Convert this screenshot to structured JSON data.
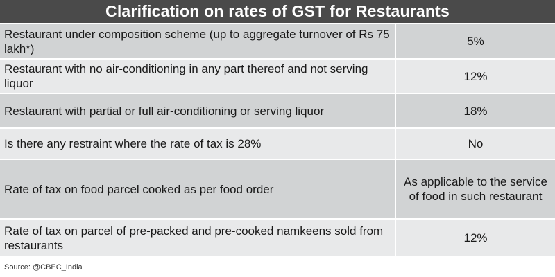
{
  "title": "Clarification on rates of GST for Restaurants",
  "rows": [
    {
      "label": "Restaurant under composition scheme (up to aggregate turnover of Rs 75 lakh*)",
      "rate": "5%"
    },
    {
      "label": "Restaurant with no air-conditioning in any part thereof and not serving liquor",
      "rate": "12%"
    },
    {
      "label": "Restaurant with partial or full air-conditioning or serving liquor",
      "rate": "18%"
    },
    {
      "label": "Is there any restraint where the rate of tax is 28%",
      "rate": "No"
    },
    {
      "label": "Rate of tax on food parcel cooked as per food order",
      "rate": "As applicable to the service of food in such restaurant"
    },
    {
      "label": "Rate of tax on parcel of pre-packed and pre-cooked namkeens sold from restaurants",
      "rate": "12%"
    }
  ],
  "source": "Source: @CBEC_India",
  "colors": {
    "title_bg": "#4a4a4a",
    "row_dark": "#d1d3d4",
    "row_light": "#e8e9ea"
  }
}
